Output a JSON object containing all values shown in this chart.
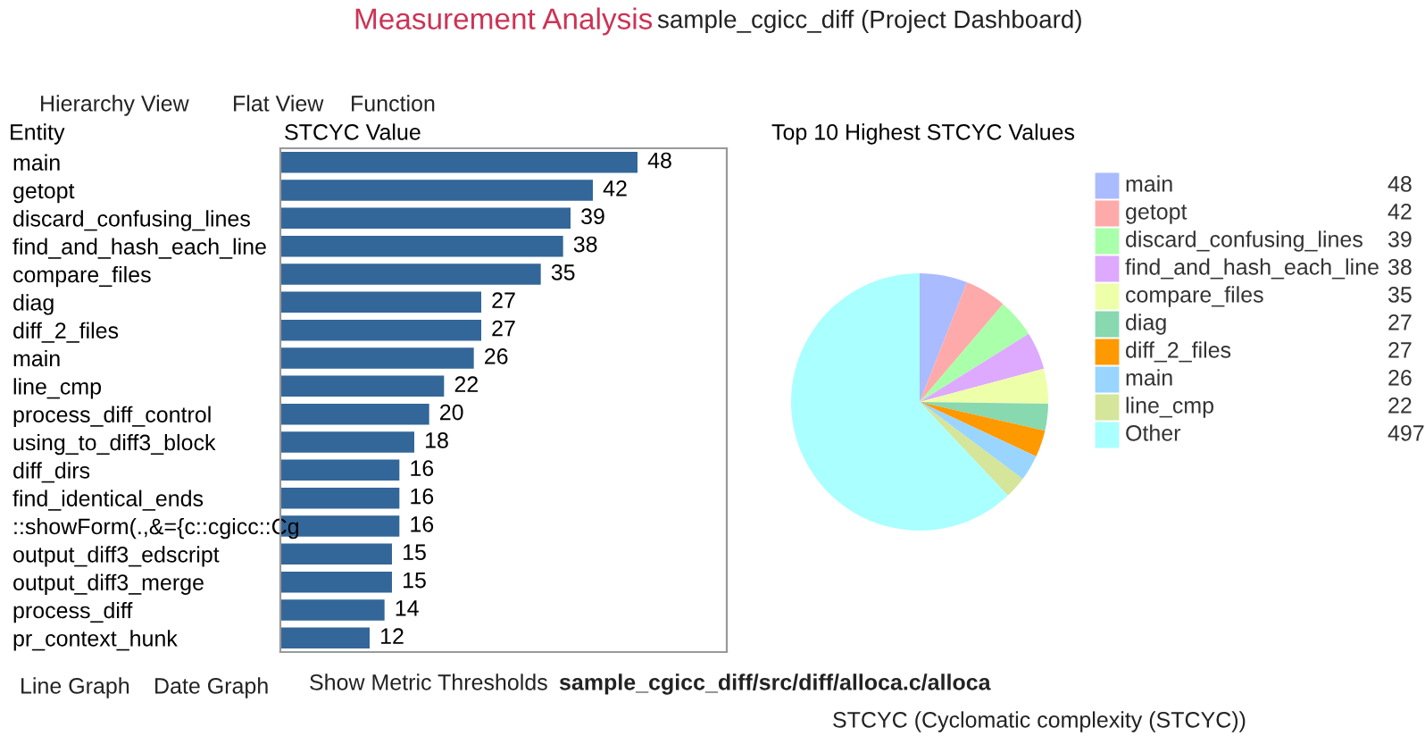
{
  "chart_data": [
    {
      "type": "bar",
      "orientation": "horizontal",
      "xlabel": "STCYC Value",
      "ylabel": "Entity",
      "data_labels": true,
      "color": "#336699",
      "categories": [
        "main",
        "getopt",
        "discard_confusing_lines",
        "find_and_hash_each_line",
        "compare_files",
        "diag",
        "diff_2_files",
        "main",
        "line_cmp",
        "process_diff_control",
        "using_to_diff3_block",
        "diff_dirs",
        "find_identical_ends",
        "::showForm(.,&={c::cgicc::Cg",
        "output_diff3_edscript",
        "output_diff3_merge",
        "process_diff",
        "pr_context_hunk"
      ],
      "values": [
        48,
        42,
        39,
        38,
        35,
        27,
        27,
        26,
        22,
        20,
        18,
        16,
        16,
        16,
        15,
        15,
        14,
        12
      ],
      "annotations": [
        "Measurement Analysis",
        "sample_cgicc_diff (Project Dashboard)",
        "Hierarchy View",
        "Flat View",
        "Function",
        "Line Graph",
        "Date Graph",
        "Show Metric Thresholds",
        "sample_cgicc_diff/src/diff/alloca.c/alloca",
        "STCYC (Cyclomatic complexity (STCYC))"
      ]
    },
    {
      "type": "pie",
      "title": "Top 10 Highest STCYC Values",
      "legend": "right",
      "data_labels": true,
      "categories": [
        "main",
        "getopt",
        "discard_confusing_lines",
        "find_and_hash_each_line",
        "compare_files",
        "diag",
        "diff_2_files",
        "main",
        "line_cmp",
        "Other"
      ],
      "values": [
        48,
        42,
        39,
        38,
        35,
        27,
        27,
        26,
        22,
        497
      ],
      "colors": [
        "#aabbff",
        "#ffaaaa",
        "#aaffaa",
        "#ddaaff",
        "#eeffaa",
        "#88d8b0",
        "#ff9900",
        "#99d5ff",
        "#d5e599",
        "#aaffff"
      ]
    }
  ]
}
